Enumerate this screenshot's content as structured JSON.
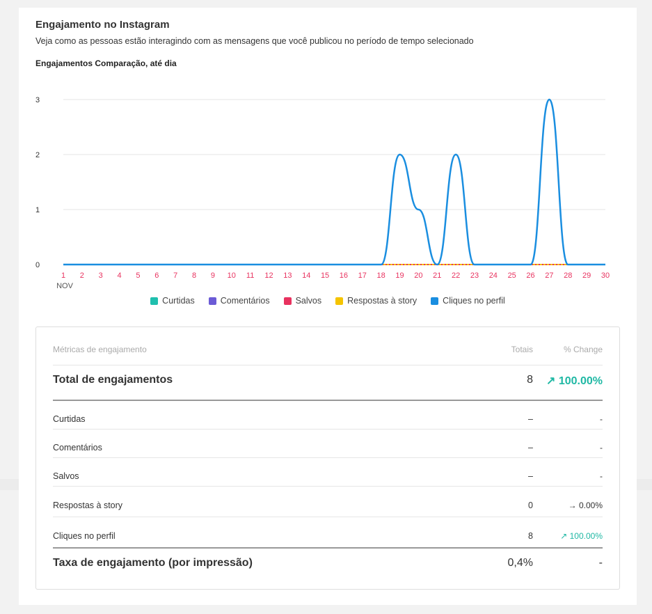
{
  "header": {
    "title": "Engajamento no Instagram",
    "subtitle": "Veja como as pessoas estão interagindo com as mensagens que você publicou no período de tempo selecionado"
  },
  "chart_data": {
    "type": "line",
    "title": "Engajamentos Comparação, até dia",
    "x_month_label": "NOV",
    "x": [
      "1",
      "2",
      "3",
      "4",
      "5",
      "6",
      "7",
      "8",
      "9",
      "10",
      "11",
      "12",
      "13",
      "14",
      "15",
      "16",
      "17",
      "18",
      "19",
      "20",
      "21",
      "22",
      "23",
      "24",
      "25",
      "26",
      "27",
      "28",
      "29",
      "30"
    ],
    "ylim": [
      0,
      3
    ],
    "yticks": [
      0,
      1,
      2,
      3
    ],
    "grid": true,
    "legend_position": "bottom",
    "series": [
      {
        "name": "Curtidas",
        "color": "#1fbfae",
        "values": [
          0,
          0,
          0,
          0,
          0,
          0,
          0,
          0,
          0,
          0,
          0,
          0,
          0,
          0,
          0,
          0,
          0,
          0,
          0,
          0,
          0,
          0,
          0,
          0,
          0,
          0,
          0,
          0,
          0,
          0
        ]
      },
      {
        "name": "Comentários",
        "color": "#6b5bd6",
        "values": [
          0,
          0,
          0,
          0,
          0,
          0,
          0,
          0,
          0,
          0,
          0,
          0,
          0,
          0,
          0,
          0,
          0,
          0,
          0,
          0,
          0,
          0,
          0,
          0,
          0,
          0,
          0,
          0,
          0,
          0
        ]
      },
      {
        "name": "Salvos",
        "color": "#e8325f",
        "values": [
          0,
          0,
          0,
          0,
          0,
          0,
          0,
          0,
          0,
          0,
          0,
          0,
          0,
          0,
          0,
          0,
          0,
          0,
          0,
          0,
          0,
          0,
          0,
          0,
          0,
          0,
          0,
          0,
          0,
          0
        ]
      },
      {
        "name": "Respostas à story",
        "color": "#f5c400",
        "values": [
          0,
          0,
          0,
          0,
          0,
          0,
          0,
          0,
          0,
          0,
          0,
          0,
          0,
          0,
          0,
          0,
          0,
          0,
          0,
          0,
          0,
          0,
          0,
          0,
          0,
          0,
          0,
          0,
          0,
          0
        ]
      },
      {
        "name": "Cliques no perfil",
        "color": "#1a8ee0",
        "values": [
          0,
          0,
          0,
          0,
          0,
          0,
          0,
          0,
          0,
          0,
          0,
          0,
          0,
          0,
          0,
          0,
          0,
          0,
          2,
          1,
          0,
          2,
          0,
          0,
          0,
          0,
          3,
          0,
          0,
          0
        ]
      }
    ],
    "axis_tick_color": "#e8325f"
  },
  "table": {
    "header": {
      "name": "Métricas de engajamento",
      "total": "Totais",
      "change": "% Change"
    },
    "total_row": {
      "name": "Total de engajamentos",
      "total": "8",
      "change": "↗ 100.00%"
    },
    "rows": [
      {
        "name": "Curtidas",
        "total": "–",
        "change": "-"
      },
      {
        "name": "Comentários",
        "total": "–",
        "change": "-"
      },
      {
        "name": "Salvos",
        "total": "–",
        "change": "-"
      },
      {
        "name": "Respostas à story",
        "total": "0",
        "change": "→ 0.00%"
      },
      {
        "name": "Cliques no perfil",
        "total": "8",
        "change": "↗ 100.00%"
      }
    ],
    "rate_row": {
      "name": "Taxa de engajamento (por impressão)",
      "total": "0,4%",
      "change": "-"
    }
  }
}
